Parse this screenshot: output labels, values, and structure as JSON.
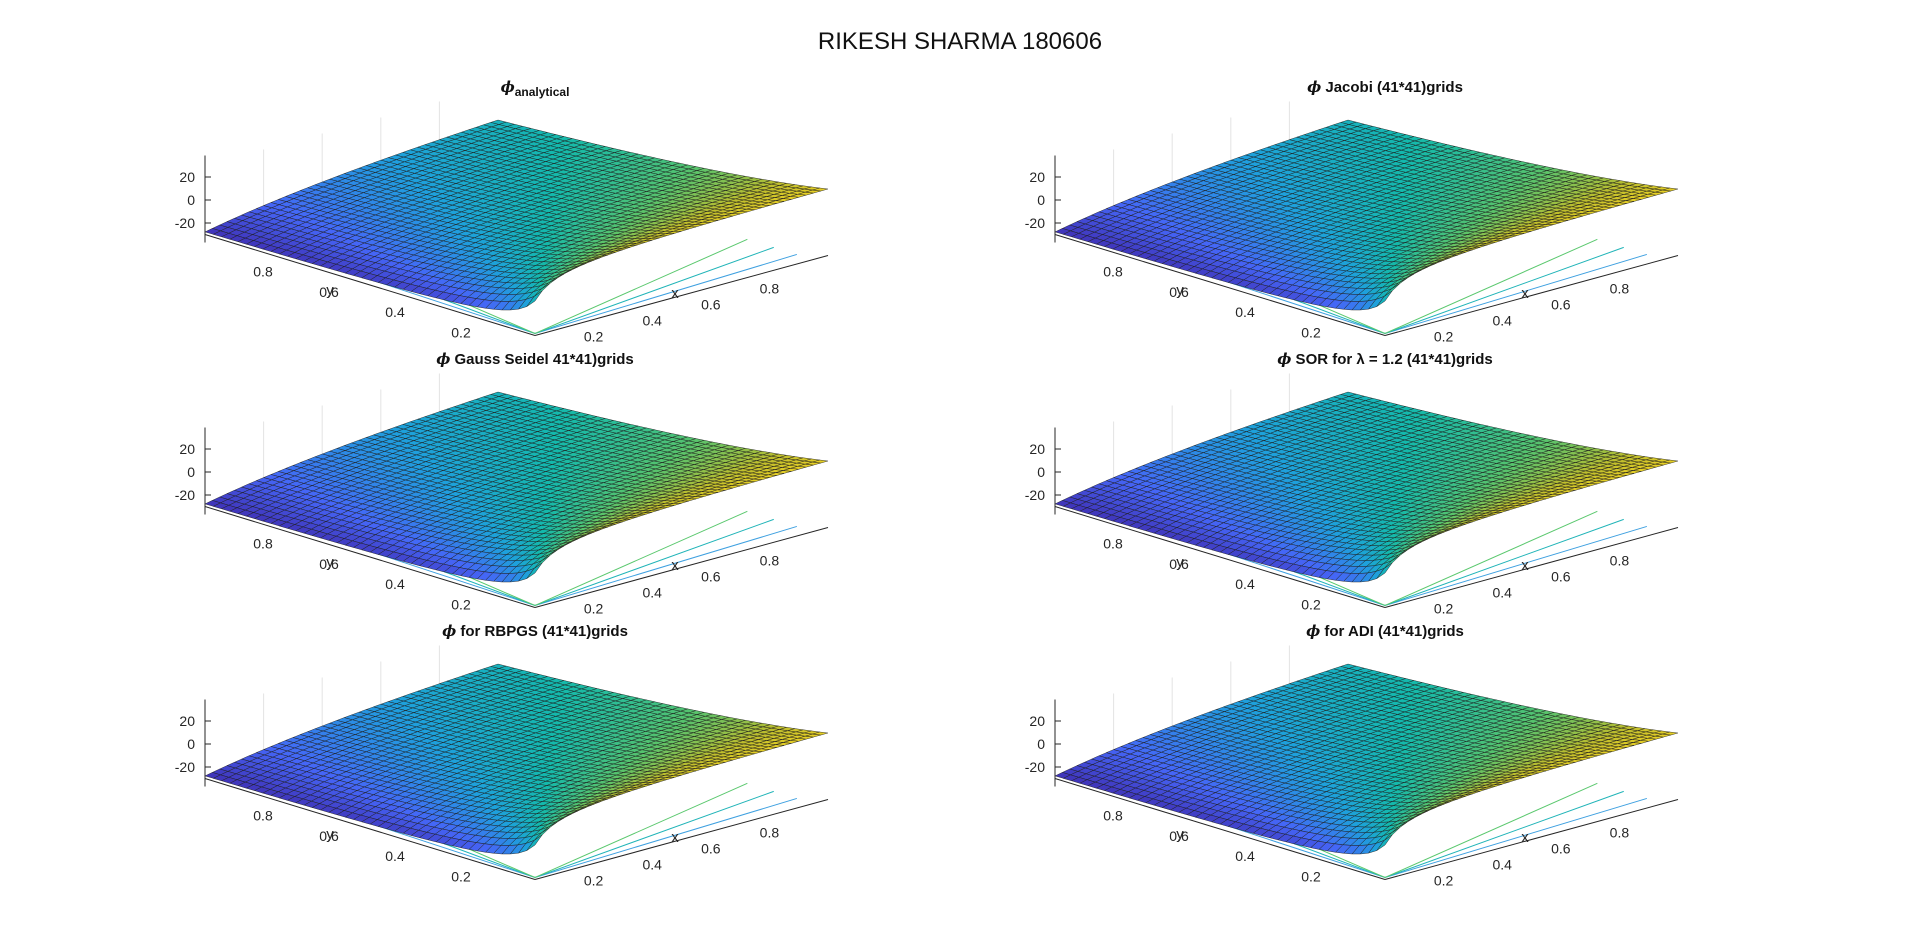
{
  "figure_title": "RIKESH SHARMA 180606",
  "chart_data": [
    {
      "type": "surface",
      "title": {
        "symbol": "ϕ",
        "sub": "analytical",
        "text": ""
      },
      "xlabel": "x",
      "ylabel": "y",
      "zticks": [
        20,
        0,
        -20
      ],
      "zlim": [
        -30,
        30
      ],
      "xticks": [
        0.2,
        0.4,
        0.6,
        0.8
      ],
      "yticks": [
        0.8,
        0.6,
        0.4,
        0.2
      ],
      "grid": true,
      "colormap": "parula"
    },
    {
      "type": "surface",
      "title": {
        "symbol": "ϕ",
        "sub": "",
        "text": " Jacobi (41*41)grids"
      },
      "xlabel": "x",
      "ylabel": "y",
      "zticks": [
        20,
        0,
        -20
      ],
      "zlim": [
        -30,
        30
      ],
      "xticks": [
        0.2,
        0.4,
        0.6,
        0.8
      ],
      "yticks": [
        0.8,
        0.6,
        0.4,
        0.2
      ],
      "grid": true,
      "colormap": "parula"
    },
    {
      "type": "surface",
      "title": {
        "symbol": "ϕ",
        "sub": "",
        "text": " Gauss Seidel 41*41)grids"
      },
      "xlabel": "x",
      "ylabel": "y",
      "zticks": [
        20,
        0,
        -20
      ],
      "zlim": [
        -30,
        30
      ],
      "xticks": [
        0.2,
        0.4,
        0.6,
        0.8
      ],
      "yticks": [
        0.8,
        0.6,
        0.4,
        0.2
      ],
      "grid": true,
      "colormap": "parula"
    },
    {
      "type": "surface",
      "title": {
        "symbol": "ϕ",
        "sub": "",
        "text": " SOR for λ = 1.2  (41*41)grids"
      },
      "xlabel": "x",
      "ylabel": "y",
      "zticks": [
        20,
        0,
        -20
      ],
      "zlim": [
        -30,
        30
      ],
      "xticks": [
        0.2,
        0.4,
        0.6,
        0.8
      ],
      "yticks": [
        0.8,
        0.6,
        0.4,
        0.2
      ],
      "grid": true,
      "colormap": "parula"
    },
    {
      "type": "surface",
      "title": {
        "symbol": "ϕ",
        "sub": "",
        "text": " for RBPGS (41*41)grids"
      },
      "xlabel": "x",
      "ylabel": "y",
      "zticks": [
        20,
        0,
        -20
      ],
      "zlim": [
        -30,
        30
      ],
      "xticks": [
        0.2,
        0.4,
        0.6,
        0.8
      ],
      "yticks": [
        0.8,
        0.6,
        0.4,
        0.2
      ],
      "grid": true,
      "colormap": "parula"
    },
    {
      "type": "surface",
      "title": {
        "symbol": "ϕ",
        "sub": "",
        "text": " for ADI (41*41)grids"
      },
      "xlabel": "x",
      "ylabel": "y",
      "zticks": [
        20,
        0,
        -20
      ],
      "zlim": [
        -30,
        30
      ],
      "xticks": [
        0.2,
        0.4,
        0.6,
        0.8
      ],
      "yticks": [
        0.8,
        0.6,
        0.4,
        0.2
      ],
      "grid": true,
      "colormap": "parula"
    }
  ]
}
